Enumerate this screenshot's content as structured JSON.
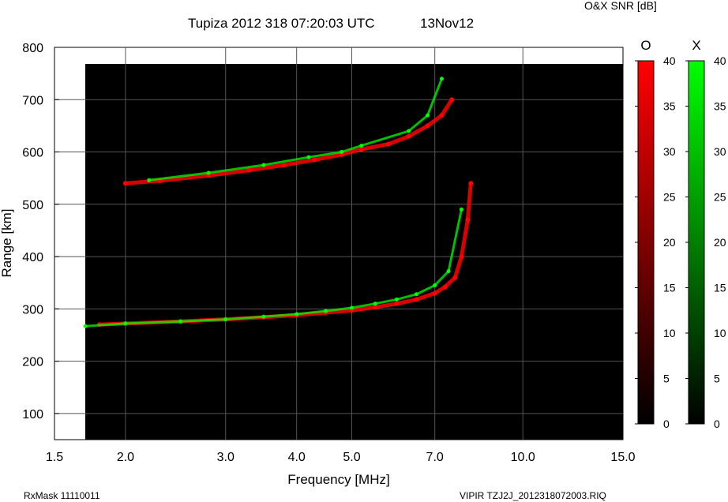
{
  "header": {
    "title": "Tupiza 2012 318 07:20:03 UTC",
    "date": "13Nov12",
    "snr_label": "O&X SNR [dB]"
  },
  "footer": {
    "left": "RxMask 11110011",
    "right": "VIPIR  TZJ2J_2012318072003.RIQ"
  },
  "colorbars": [
    {
      "label": "O",
      "color": "#ff0000",
      "ticks": [
        0,
        5,
        10,
        15,
        20,
        25,
        30,
        35,
        40
      ]
    },
    {
      "label": "X",
      "color": "#00ff00",
      "ticks": [
        0,
        5,
        10,
        15,
        20,
        25,
        30,
        35,
        40
      ]
    }
  ],
  "chart_data": {
    "type": "scatter",
    "title": "Tupiza 2012 318 07:20:03 UTC",
    "xlabel": "Frequency [MHz]",
    "ylabel": "Range [km]",
    "xscale": "log",
    "xlim": [
      1.5,
      15.0
    ],
    "ylim": [
      50,
      800
    ],
    "xticks": [
      1.5,
      2.0,
      3.0,
      4.0,
      5.0,
      7.0,
      10.0,
      15.0
    ],
    "xtick_labels": [
      "1.5",
      "2.0",
      "3.0",
      "4.0",
      "5.0",
      "7.0",
      "10.0",
      "15.0"
    ],
    "yticks": [
      100,
      200,
      300,
      400,
      500,
      600,
      700,
      800
    ],
    "grid": true,
    "series": [
      {
        "name": "O",
        "color": "#ff0000",
        "x": [
          1.8,
          2.0,
          2.5,
          3.0,
          3.5,
          4.0,
          4.5,
          5.0,
          5.5,
          6.0,
          6.5,
          7.0,
          7.3,
          7.6,
          7.8,
          8.0,
          8.1
        ],
        "y": [
          270,
          272,
          276,
          280,
          284,
          288,
          293,
          297,
          303,
          310,
          318,
          330,
          342,
          360,
          400,
          470,
          540
        ]
      },
      {
        "name": "X",
        "color": "#00ff00",
        "x": [
          1.7,
          2.0,
          2.5,
          3.0,
          3.5,
          4.0,
          4.5,
          5.0,
          5.5,
          6.0,
          6.5,
          7.0,
          7.4,
          7.8
        ],
        "y": [
          267,
          272,
          276,
          280,
          285,
          290,
          296,
          302,
          310,
          318,
          328,
          345,
          372,
          490
        ]
      },
      {
        "name": "O-upper",
        "color": "#ff0000",
        "x": [
          2.0,
          2.3,
          2.8,
          3.3,
          3.8,
          4.3,
          4.8,
          5.2,
          5.8,
          6.3,
          6.8,
          7.2,
          7.5
        ],
        "y": [
          540,
          545,
          555,
          565,
          575,
          585,
          595,
          605,
          615,
          630,
          650,
          670,
          700
        ]
      },
      {
        "name": "X-upper",
        "color": "#00ff00",
        "x": [
          2.2,
          2.8,
          3.5,
          4.2,
          4.8,
          5.2,
          6.3,
          6.8,
          7.2
        ],
        "y": [
          546,
          560,
          575,
          590,
          600,
          612,
          640,
          670,
          740
        ]
      }
    ]
  }
}
